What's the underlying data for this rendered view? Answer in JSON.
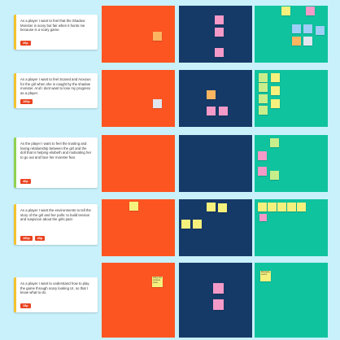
{
  "rows": [
    {
      "text": "As a player I want to feel that the Shadow Monster is scary but fair when it hunts me because is a scary game.",
      "tags": [
        "20p"
      ],
      "accent": "#f3c231"
    },
    {
      "text": "As a player I want to feel Scared and Anxious for the girl when she is caught by the shadow monster. And I dont want to lose my progress as a player.",
      "tags": [
        "100p"
      ],
      "accent": "#f3c231"
    },
    {
      "text": "As the player I want to feel the trusting and loving relationship between the girl and the doll that is helping eliobeth and motivating her to go out and face her monster fear.",
      "tags": [
        "40p"
      ],
      "accent": "#8fd14f"
    },
    {
      "text": "As a player I want the environments to tell the story of the girl and her polls: to build tension and suspicion about the girls past",
      "tags": [
        "100p",
        "40p"
      ],
      "accent": "#f3c231"
    },
    {
      "text": "As a player I want to understand how to play the game through scary looking UI, so that I know what to do.",
      "tags": [
        "15p"
      ],
      "accent": "#f3c231"
    }
  ],
  "sticky_notes": {
    "row5_orange": {
      "text": "Scary and ominous menu"
    },
    "row5_teal": {
      "text": "Managing menus"
    }
  },
  "colors": {
    "background": "#c9f1fb",
    "orange_panel": "#fd5522",
    "navy_panel": "#163a68",
    "teal_panel": "#10c39f",
    "tag": "#e8431f"
  }
}
